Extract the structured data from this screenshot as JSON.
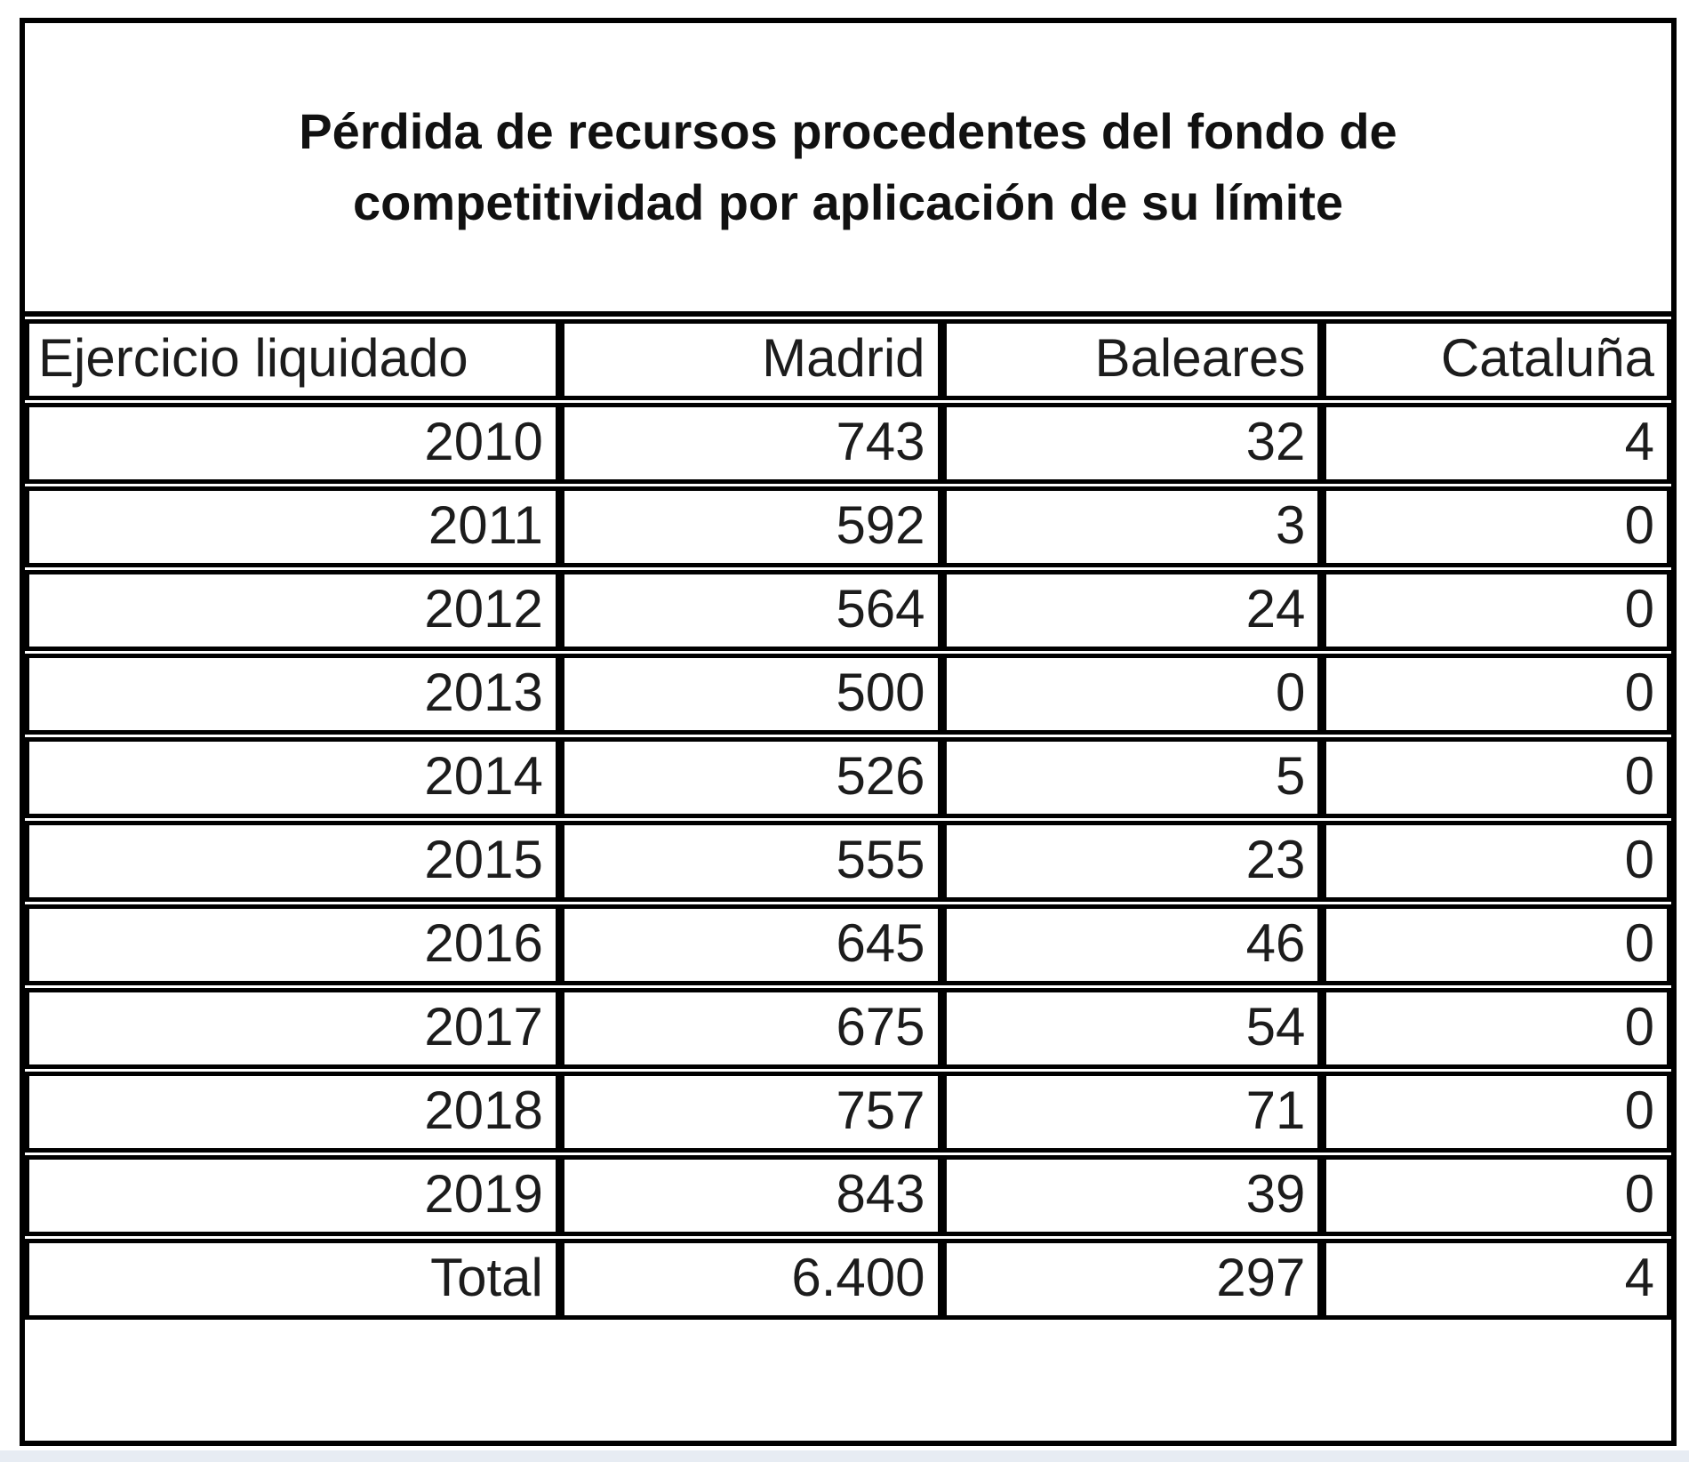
{
  "title": {
    "line1": "Pérdida de recursos procedentes del fondo de",
    "line2": "competitividad por aplicación de su límite",
    "full": "Pérdida de recursos procedentes del fondo de competitividad por aplicación de su límite"
  },
  "table": {
    "headers": [
      "Ejercicio liquidado",
      "Madrid",
      "Baleares",
      "Cataluña"
    ],
    "rows": [
      [
        "2010",
        "743",
        "32",
        "4"
      ],
      [
        "2011",
        "592",
        "3",
        "0"
      ],
      [
        "2012",
        "564",
        "24",
        "0"
      ],
      [
        "2013",
        "500",
        "0",
        "0"
      ],
      [
        "2014",
        "526",
        "5",
        "0"
      ],
      [
        "2015",
        "555",
        "23",
        "0"
      ],
      [
        "2016",
        "645",
        "46",
        "0"
      ],
      [
        "2017",
        "675",
        "54",
        "0"
      ],
      [
        "2018",
        "757",
        "71",
        "0"
      ],
      [
        "2019",
        "843",
        "39",
        "0"
      ],
      [
        "Total",
        "6.400",
        "297",
        "4"
      ]
    ]
  },
  "colors": {
    "border": "#000000",
    "text": "#1c1c1c",
    "background": "#ffffff",
    "bottom_strip": "#e7ecf3"
  },
  "chart_data": {
    "type": "table",
    "title": "Pérdida de recursos procedentes del fondo de competitividad por aplicación de su límite",
    "columns": [
      "Ejercicio liquidado",
      "Madrid",
      "Baleares",
      "Cataluña"
    ],
    "categories": [
      "2010",
      "2011",
      "2012",
      "2013",
      "2014",
      "2015",
      "2016",
      "2017",
      "2018",
      "2019"
    ],
    "series": [
      {
        "name": "Madrid",
        "values": [
          743,
          592,
          564,
          500,
          526,
          555,
          645,
          675,
          757,
          843
        ],
        "total": 6400
      },
      {
        "name": "Baleares",
        "values": [
          32,
          3,
          24,
          0,
          5,
          23,
          46,
          54,
          71,
          39
        ],
        "total": 297
      },
      {
        "name": "Cataluña",
        "values": [
          4,
          0,
          0,
          0,
          0,
          0,
          0,
          0,
          0,
          0
        ],
        "total": 4
      }
    ],
    "total_row_label": "Total",
    "number_format": "es-ES (thousands separator '.')"
  }
}
